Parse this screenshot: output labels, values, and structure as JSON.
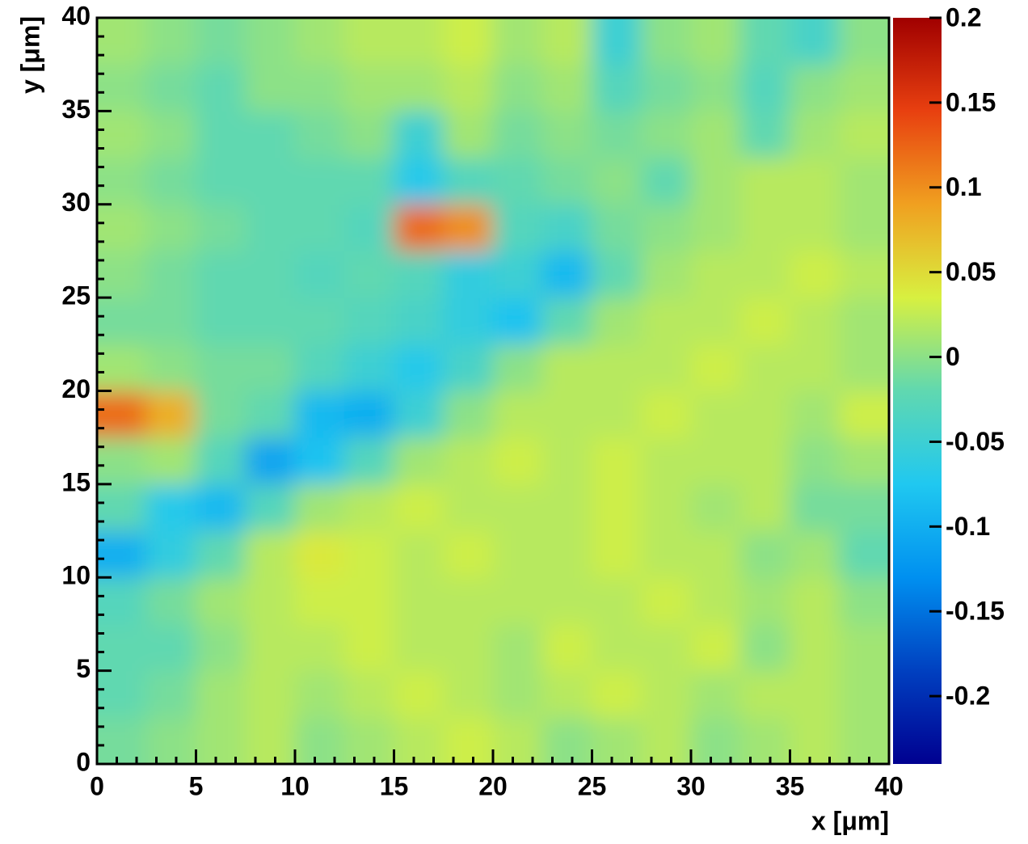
{
  "chart_data": {
    "type": "heatmap",
    "x_label": "x [μm]",
    "y_label": "y [μm]",
    "xlim": [
      0,
      40
    ],
    "ylim": [
      0,
      40
    ],
    "xticks": [
      0,
      5,
      10,
      15,
      20,
      25,
      30,
      35,
      40
    ],
    "yticks": [
      0,
      5,
      10,
      15,
      20,
      25,
      30,
      35,
      40
    ],
    "zlim": [
      -0.24,
      0.2
    ],
    "zticks": [
      0.2,
      0.15,
      0.1,
      0.05,
      0,
      -0.05,
      -0.1,
      -0.15,
      -0.2
    ],
    "colorscale": [
      "#000090",
      "#0040c0",
      "#0090f0",
      "#20c8f0",
      "#60d8b0",
      "#d8f040",
      "#f0a020",
      "#e84010",
      "#a00000"
    ],
    "z": [
      [
        -0.01,
        0,
        0.01,
        0.02,
        0,
        0.01,
        0.02,
        0.03,
        0.02,
        0,
        0.01,
        0.02,
        0,
        0.01,
        0.02,
        0.01
      ],
      [
        -0.02,
        -0.01,
        0.01,
        0.02,
        0.01,
        0.02,
        0.03,
        0.02,
        0.01,
        0.02,
        0.03,
        0.02,
        0.01,
        0.02,
        0.02,
        0.01
      ],
      [
        -0.02,
        -0.02,
        0,
        0.02,
        0.02,
        0.03,
        0.02,
        0.02,
        0.01,
        0.03,
        0.02,
        0.02,
        0.03,
        0,
        0.02,
        0.01
      ],
      [
        -0.03,
        -0.01,
        0.01,
        0.02,
        0.03,
        0.03,
        0.02,
        0.02,
        0.02,
        0.02,
        0.02,
        0.03,
        0.02,
        0.01,
        0.02,
        0
      ],
      [
        -0.1,
        -0.06,
        -0.02,
        0.02,
        0.04,
        0.03,
        0.02,
        0.03,
        0.02,
        0.02,
        0.03,
        0.02,
        0.02,
        0,
        0.01,
        -0.02
      ],
      [
        -0.02,
        -0.07,
        -0.09,
        -0.03,
        0.01,
        0.02,
        0.03,
        0.02,
        0.02,
        0.02,
        0.03,
        0.02,
        0.01,
        0.02,
        -0.01,
        -0.01
      ],
      [
        0,
        0.01,
        -0.03,
        -0.11,
        -0.08,
        -0.03,
        0.01,
        0.02,
        0.03,
        0.02,
        0.03,
        0.02,
        0.02,
        0.02,
        0,
        0.01
      ],
      [
        0.12,
        0.08,
        -0.01,
        -0.02,
        -0.09,
        -0.1,
        -0.05,
        0,
        0.02,
        0.02,
        0.02,
        0.03,
        0.02,
        0.02,
        0.01,
        0.03
      ],
      [
        0.01,
        0,
        -0.01,
        -0.01,
        -0.03,
        -0.05,
        -0.07,
        -0.04,
        0,
        0.02,
        0.02,
        0.02,
        0.03,
        0.02,
        0.02,
        0.01
      ],
      [
        -0.01,
        -0.01,
        -0.02,
        -0.02,
        -0.02,
        -0.03,
        -0.04,
        -0.06,
        -0.08,
        -0.02,
        0.01,
        0.02,
        0.02,
        0.03,
        0.02,
        0.01
      ],
      [
        0,
        -0.01,
        -0.02,
        -0.02,
        -0.03,
        -0.02,
        -0.03,
        -0.06,
        -0.05,
        -0.09,
        -0.02,
        0.01,
        0.02,
        0.02,
        0.03,
        0.02
      ],
      [
        0.01,
        0,
        -0.01,
        -0.02,
        -0.02,
        -0.03,
        0.12,
        0.1,
        -0.03,
        -0.04,
        -0.01,
        0,
        0.01,
        0.02,
        0.02,
        0.01
      ],
      [
        0,
        -0.01,
        -0.02,
        -0.02,
        -0.02,
        -0.02,
        -0.07,
        -0.03,
        -0.02,
        -0.01,
        0,
        -0.02,
        0.01,
        0.02,
        0.02,
        0.01
      ],
      [
        0.01,
        0,
        -0.02,
        -0.02,
        -0.01,
        0,
        -0.05,
        0.01,
        -0.01,
        0,
        -0.01,
        0,
        0.01,
        -0.02,
        0.01,
        0.02
      ],
      [
        0,
        -0.01,
        -0.02,
        0,
        0,
        0.01,
        0.01,
        0.02,
        0,
        0.01,
        -0.03,
        -0.01,
        0,
        -0.03,
        0,
        0.01
      ],
      [
        0.01,
        0,
        -0.01,
        0,
        0.01,
        0.02,
        0.02,
        0.03,
        0.01,
        0.02,
        -0.05,
        0,
        0.01,
        -0.02,
        -0.04,
        0
      ]
    ]
  }
}
